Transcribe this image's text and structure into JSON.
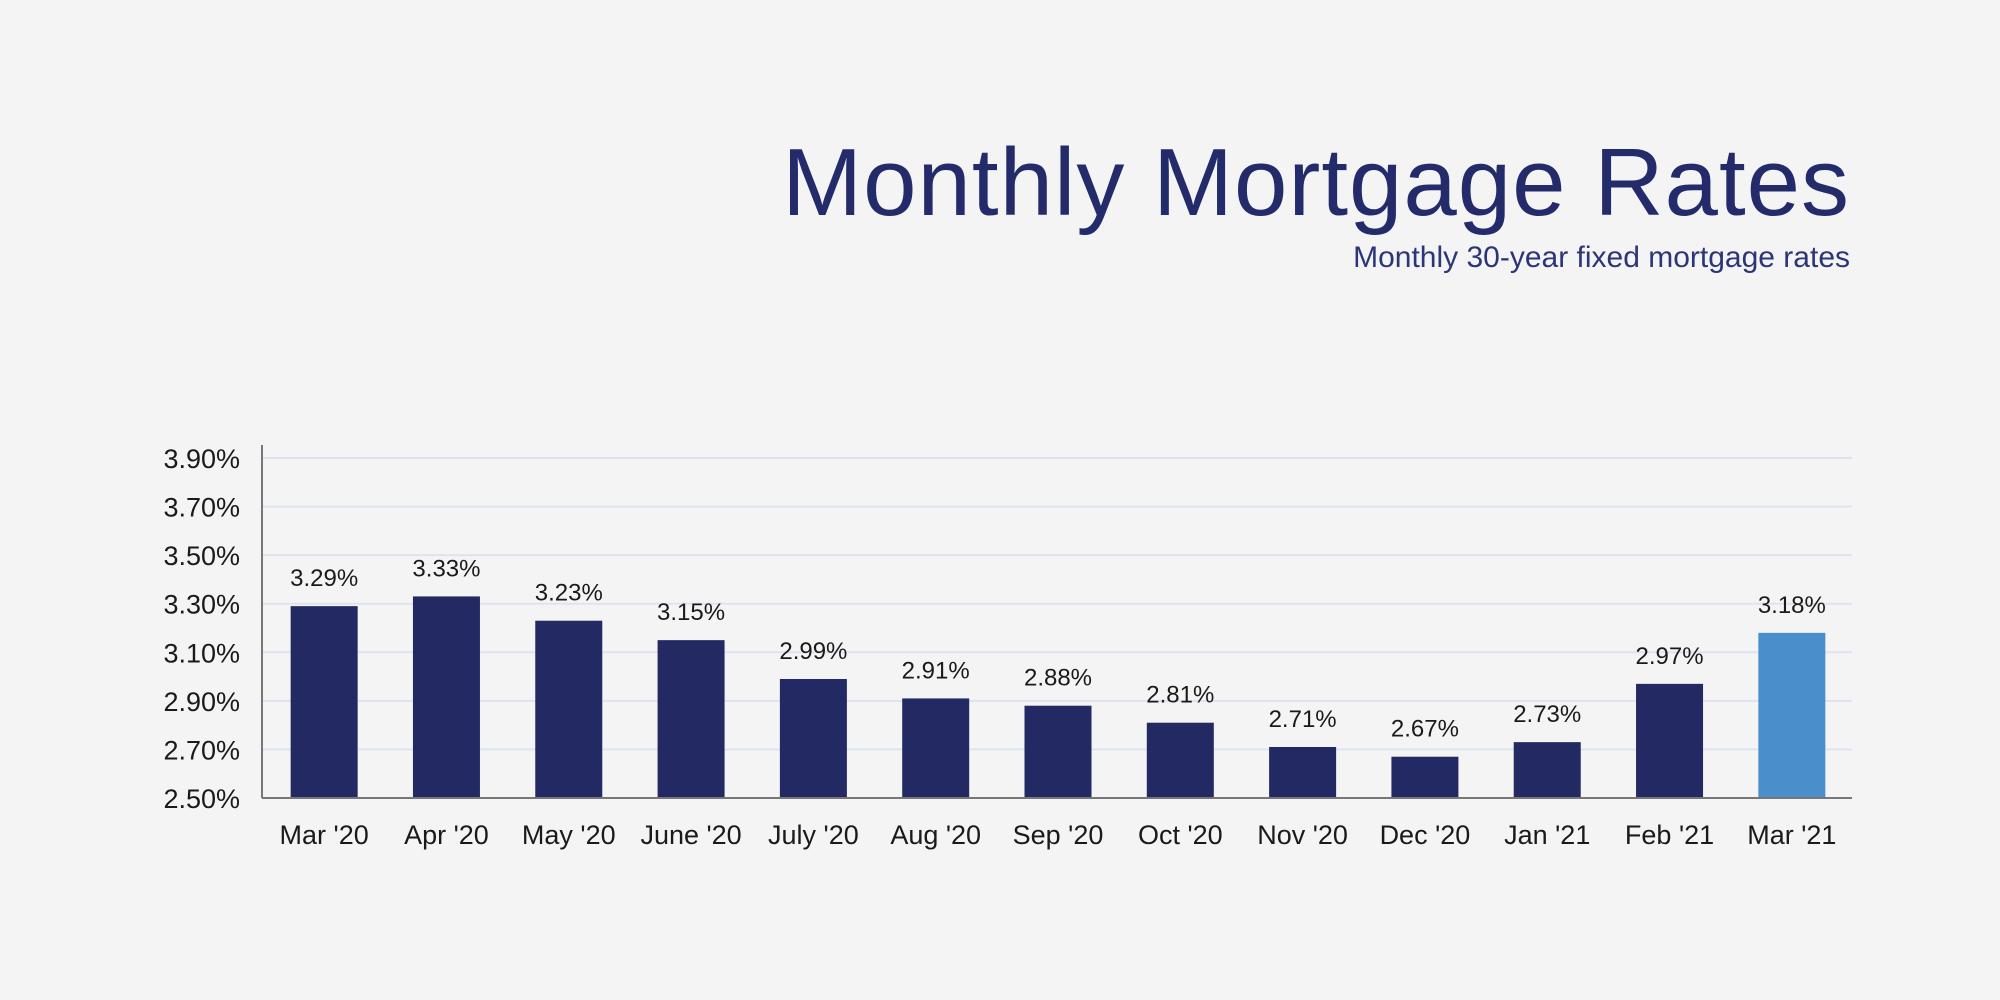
{
  "chart_data": {
    "type": "bar",
    "title": "Monthly Mortgage Rates",
    "subtitle": "Monthly 30-year fixed mortgage rates",
    "categories": [
      "Mar '20",
      "Apr '20",
      "May '20",
      "June '20",
      "July '20",
      "Aug '20",
      "Sep '20",
      "Oct '20",
      "Nov '20",
      "Dec '20",
      "Jan '21",
      "Feb '21",
      "Mar '21"
    ],
    "values": [
      3.29,
      3.33,
      3.23,
      3.15,
      2.99,
      2.91,
      2.88,
      2.81,
      2.71,
      2.67,
      2.73,
      2.97,
      3.18
    ],
    "value_labels": [
      "3.29%",
      "3.33%",
      "3.23%",
      "3.15%",
      "2.99%",
      "2.91%",
      "2.88%",
      "2.81%",
      "2.71%",
      "2.67%",
      "2.73%",
      "2.97%",
      "3.18%"
    ],
    "yticks": [
      2.5,
      2.7,
      2.9,
      3.1,
      3.3,
      3.5,
      3.7,
      3.9
    ],
    "ytick_labels": [
      "2.50%",
      "2.70%",
      "2.90%",
      "3.10%",
      "3.30%",
      "3.50%",
      "3.70%",
      "3.90%"
    ],
    "ylim": [
      2.5,
      3.95
    ],
    "xlabel": "",
    "ylabel": "",
    "grid": true,
    "colors": {
      "bar": "#232a63",
      "highlight": "#4a8ecb",
      "grid": "#dde3f0",
      "title": "#232b6a"
    },
    "highlight_index": 12
  }
}
